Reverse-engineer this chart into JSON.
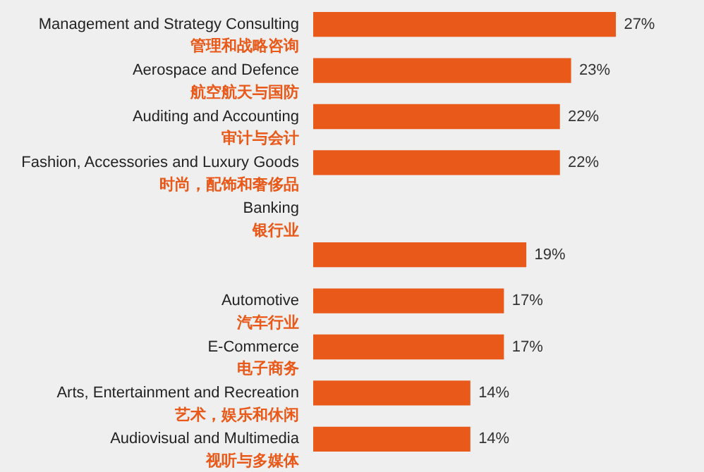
{
  "chart_data": {
    "type": "bar",
    "orientation": "horizontal",
    "categories": [
      "Management and Strategy Consulting\n管理和战略咨询",
      "Aerospace and Defence\n航空航天与国防",
      "Auditing and Accounting\n审计与会计",
      "Fashion, Accessories and Luxury Goods\n时尚，配饰和奢侈品",
      "Banking\n银行业",
      null,
      "Automotive\n汽车行业",
      "E-Commerce\n电子商务",
      "Arts, Entertainment and Recreation\n艺术，娱乐和休闲",
      "Audiovisual and Multimedia\n视听与多媒体"
    ],
    "values": [
      27,
      23,
      22,
      22,
      null,
      19,
      17,
      17,
      14,
      14
    ],
    "value_labels": [
      "27%",
      "23%",
      "22%",
      "22%",
      null,
      "19%",
      "17%",
      "17%",
      "14%",
      "14%"
    ],
    "color": "#e8591a",
    "legend": false
  }
}
